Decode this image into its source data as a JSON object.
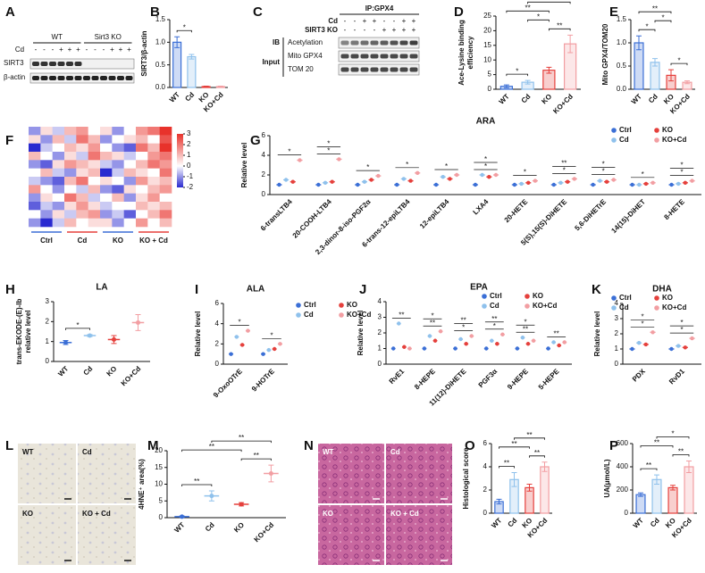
{
  "blot_a": {
    "panel": "A",
    "groups": [
      "WT",
      "Sirt3 KO"
    ],
    "treatment": "Cd",
    "signs": [
      "-",
      "-",
      "-",
      "+",
      "+",
      "+",
      "-",
      "-",
      "-",
      "+",
      "+",
      "+"
    ],
    "rows": [
      "SIRT3",
      "β-actin"
    ]
  },
  "blot_c": {
    "panel": "C",
    "title": "IP:GPX4",
    "conditions": [
      {
        "label": "Cd",
        "signs": [
          "-",
          "-",
          "+",
          "+",
          "-",
          "-",
          "+",
          "+"
        ]
      },
      {
        "label": "SIRT3 KO",
        "signs": [
          "-",
          "-",
          "-",
          "-",
          "+",
          "+",
          "+",
          "+"
        ]
      }
    ],
    "ib_label": "IB",
    "input_label": "Input",
    "ip_rows": [
      "Acetylation"
    ],
    "input_rows": [
      "Mito GPX4",
      "TOM 20"
    ]
  },
  "heatmap": {
    "panel": "F",
    "groups": [
      "Ctrl",
      "Cd",
      "KO",
      "KO + Cd"
    ],
    "colorbar_ticks": [
      3,
      2,
      1,
      0,
      -1,
      -2
    ],
    "matrix": [
      [
        -1,
        0.5,
        -0.5,
        1,
        1.5,
        0,
        0.5,
        -1,
        0,
        1.5,
        2,
        3
      ],
      [
        0.5,
        -1,
        1,
        -0.5,
        2,
        1,
        -1,
        0,
        0.5,
        1,
        0,
        2.5
      ],
      [
        -2,
        -0.5,
        0,
        1,
        0.5,
        1.5,
        0,
        -1,
        -1.5,
        2,
        1,
        3
      ],
      [
        1,
        0,
        -1,
        0.5,
        -0.5,
        2,
        1,
        0.5,
        -0.5,
        0,
        1.5,
        2
      ],
      [
        -1,
        -1.5,
        0.5,
        1.5,
        1,
        0.5,
        -0.5,
        -1,
        0,
        1,
        2,
        1.5
      ],
      [
        0,
        1,
        -0.5,
        -1,
        0.5,
        1,
        -2,
        -0.5,
        1,
        0.5,
        0,
        2
      ],
      [
        -0.5,
        -1,
        -1.5,
        1,
        2,
        0,
        0.5,
        0,
        -1,
        1.5,
        0.5,
        1
      ],
      [
        1.5,
        0,
        -1,
        0,
        -0.5,
        1,
        -1,
        -1.5,
        0.5,
        0,
        1,
        1.5
      ],
      [
        -1,
        0.5,
        0,
        2,
        1,
        -0.5,
        0,
        1,
        -1,
        0.5,
        1.5,
        0
      ],
      [
        -1.5,
        -0.5,
        -1,
        0.5,
        1.5,
        0.5,
        -0.5,
        0,
        0,
        1,
        0.5,
        1
      ],
      [
        0,
        -1,
        0.5,
        -0.5,
        1,
        1.5,
        -1,
        -0.5,
        -1.5,
        0,
        1,
        2
      ],
      [
        -1,
        -2,
        -0.5,
        1,
        0,
        0.5,
        0.5,
        -1,
        0,
        1.5,
        0,
        1
      ]
    ]
  },
  "micrograph_l": {
    "panel": "L",
    "labels": [
      "WT",
      "Cd",
      "KO",
      "KO + Cd"
    ]
  },
  "micrograph_n": {
    "panel": "N",
    "labels": [
      "WT",
      "Cd",
      "KO",
      "KO + Cd"
    ]
  },
  "chart_data": [
    {
      "type": "bar",
      "panel": "B",
      "ylabel": [
        "SIRT3/β-actin"
      ],
      "categories": [
        "WT",
        "Cd",
        "KO",
        "KO+Cd"
      ],
      "values": [
        1.0,
        0.68,
        0.02,
        0.02
      ],
      "errors": [
        0.12,
        0.05,
        0.01,
        0.01
      ],
      "colors": [
        "#3b6fd6",
        "#8fc1ec",
        "#e5403c",
        "#f29ea2"
      ],
      "ylim": [
        0,
        1.5
      ],
      "yticks": [
        {
          "value": 0,
          "label": "0.0"
        },
        {
          "value": 0.5,
          "label": "0.5"
        },
        {
          "value": 1,
          "label": "1.0"
        },
        {
          "value": 1.5,
          "label": "1.5"
        }
      ],
      "significance": [
        {
          "pair": [
            "WT",
            "Cd"
          ],
          "label": "*"
        }
      ]
    },
    {
      "type": "bar",
      "panel": "D",
      "ylabel": [
        "Ace-Lysine binding",
        "efficiency"
      ],
      "categories": [
        "WT",
        "Cd",
        "KO",
        "KO+Cd"
      ],
      "values": [
        1,
        2.4,
        6.5,
        15.5
      ],
      "errors": [
        0.5,
        0.6,
        1,
        3
      ],
      "colors": [
        "#3b6fd6",
        "#8fc1ec",
        "#e5403c",
        "#f29ea2"
      ],
      "ylim": [
        0,
        25
      ],
      "yticks": [
        0,
        5,
        10,
        15,
        20,
        25
      ],
      "significance": [
        {
          "pair": [
            "WT",
            "Cd"
          ],
          "label": "*"
        },
        {
          "pair": [
            "KO",
            "KO+Cd"
          ],
          "label": "**"
        },
        {
          "pair": [
            "Cd",
            "KO"
          ],
          "label": "*"
        },
        {
          "pair": [
            "WT",
            "KO"
          ],
          "label": "**"
        },
        {
          "pair": [
            "Cd",
            "KO+Cd"
          ],
          "label": "**"
        }
      ]
    },
    {
      "type": "bar",
      "panel": "E",
      "ylabel": [
        "Mito GPX4/TOM20"
      ],
      "categories": [
        "WT",
        "Cd",
        "KO",
        "KO+Cd"
      ],
      "values": [
        1.0,
        0.58,
        0.3,
        0.15
      ],
      "errors": [
        0.15,
        0.08,
        0.12,
        0.03
      ],
      "colors": [
        "#3b6fd6",
        "#8fc1ec",
        "#e5403c",
        "#f29ea2"
      ],
      "ylim": [
        0,
        1.5
      ],
      "yticks": [
        {
          "value": 0,
          "label": "0.0"
        },
        {
          "value": 0.5,
          "label": "0.5"
        },
        {
          "value": 1,
          "label": "1.0"
        },
        {
          "value": 1.5,
          "label": "1.5"
        }
      ],
      "significance": [
        {
          "pair": [
            "WT",
            "Cd"
          ],
          "label": "*"
        },
        {
          "pair": [
            "KO",
            "KO+Cd"
          ],
          "label": "*"
        },
        {
          "pair": [
            "Cd",
            "KO"
          ],
          "label": "*"
        },
        {
          "pair": [
            "WT",
            "KO"
          ],
          "label": "**"
        }
      ]
    },
    {
      "type": "grouped_dot",
      "panel": "G",
      "title": "ARA",
      "ylabel": [
        "Relative level"
      ],
      "legend": "top-right",
      "categories": [
        "6-transLTB4",
        "20-COOH-LTB4",
        "2,3-dinor-8-iso-PGF2α",
        "6-trans-12-epiLTB4",
        "12-epiLTB4",
        "LXA4",
        "20-HETE",
        "5(S),15(S)-DiHETE",
        "5,6-DiHETrE",
        "14(15)-DiHET",
        "8-HETE"
      ],
      "series": [
        {
          "name": "Ctrl",
          "color": "#3b6fd6",
          "values": [
            1,
            1,
            1,
            1,
            1,
            1,
            1,
            1,
            1,
            1,
            1
          ]
        },
        {
          "name": "Cd",
          "color": "#8fc1ec",
          "values": [
            1.5,
            1.2,
            1.3,
            1.6,
            1.8,
            2.0,
            1.1,
            1.2,
            1.4,
            1.0,
            1.1
          ]
        },
        {
          "name": "KO",
          "color": "#e5403c",
          "values": [
            1.3,
            1.3,
            1.5,
            1.4,
            1.6,
            1.8,
            1.2,
            1.3,
            1.3,
            1.1,
            1.2
          ]
        },
        {
          "name": "KO+Cd",
          "color": "#f29ea2",
          "values": [
            3.5,
            3.6,
            1.9,
            2.2,
            2.0,
            2.0,
            1.4,
            1.6,
            1.5,
            1.2,
            1.4
          ]
        }
      ],
      "ylim": [
        0,
        6
      ],
      "yticks": [
        0,
        2,
        4,
        6
      ],
      "stars": [
        [
          "*"
        ],
        [
          "*",
          "*"
        ],
        [
          "*"
        ],
        [
          "*"
        ],
        [
          "*"
        ],
        [
          "*",
          "*"
        ],
        [
          "*"
        ],
        [
          "*",
          "**"
        ],
        [
          "*",
          "*"
        ],
        [
          "*"
        ],
        [
          "*",
          "*"
        ]
      ]
    },
    {
      "type": "dot",
      "panel": "H",
      "title": "LA",
      "ylabel": [
        "trans-EKODE-(E)-Ib",
        "relative level"
      ],
      "categories": [
        "WT",
        "Cd",
        "KO",
        "KO+Cd"
      ],
      "values": [
        0.95,
        1.3,
        1.1,
        1.95
      ],
      "errors": [
        0.1,
        0.05,
        0.2,
        0.4
      ],
      "colors": [
        "#3b6fd6",
        "#8fc1ec",
        "#e5403c",
        "#f29ea2"
      ],
      "ylim": [
        0,
        3
      ],
      "yticks": [
        0,
        1,
        2,
        3
      ],
      "significance": [
        {
          "pair": [
            "WT",
            "Cd"
          ],
          "label": "*"
        }
      ]
    },
    {
      "type": "grouped_dot",
      "panel": "I",
      "title": "ALA",
      "ylabel": [
        "Relative level"
      ],
      "legend": "right",
      "categories": [
        "9-OxoOTrE",
        "9-HOTrE"
      ],
      "series": [
        {
          "name": "Ctrl",
          "color": "#3b6fd6",
          "values": [
            1.0,
            1.0
          ]
        },
        {
          "name": "Cd",
          "color": "#8fc1ec",
          "values": [
            2.7,
            1.4
          ]
        },
        {
          "name": "KO",
          "color": "#e5403c",
          "values": [
            1.9,
            1.5
          ]
        },
        {
          "name": "KO+Cd",
          "color": "#f29ea2",
          "values": [
            3.3,
            2.0
          ]
        }
      ],
      "ylim": [
        0,
        6
      ],
      "yticks": [
        0,
        2,
        4,
        6
      ],
      "stars": [
        [
          "*"
        ],
        [
          "*"
        ]
      ]
    },
    {
      "type": "grouped_dot",
      "panel": "J",
      "title": "EPA",
      "ylabel": [
        "Relative level"
      ],
      "legend": "top-right",
      "categories": [
        "RvE1",
        "8-HEPE",
        "11(12)-DiHETE",
        "PGF3α",
        "9-HEPE",
        "5-HEPE"
      ],
      "series": [
        {
          "name": "Ctrl",
          "color": "#3b6fd6",
          "values": [
            1,
            1,
            1,
            1,
            1,
            1
          ]
        },
        {
          "name": "Cd",
          "color": "#8fc1ec",
          "values": [
            2.6,
            1.8,
            1.6,
            1.5,
            1.7,
            1.4
          ]
        },
        {
          "name": "KO",
          "color": "#e5403c",
          "values": [
            1.1,
            1.5,
            1.3,
            1.3,
            1.3,
            1.2
          ]
        },
        {
          "name": "KO+Cd",
          "color": "#f29ea2",
          "values": [
            1.0,
            2.1,
            1.8,
            1.9,
            1.5,
            1.4
          ]
        }
      ],
      "ylim": [
        0,
        4
      ],
      "yticks": [
        0,
        1,
        2,
        3,
        4
      ],
      "stars": [
        [
          "**"
        ],
        [
          "**",
          "*"
        ],
        [
          "*",
          "**"
        ],
        [
          "*",
          "**"
        ],
        [
          "**",
          "*"
        ],
        [
          "**"
        ]
      ]
    },
    {
      "type": "grouped_dot",
      "panel": "K",
      "title": "DHA",
      "ylabel": [
        "Relative level"
      ],
      "legend": "top-right",
      "categories": [
        "PDX",
        "RvD1"
      ],
      "series": [
        {
          "name": "Ctrl",
          "color": "#3b6fd6",
          "values": [
            1.0,
            1.0
          ]
        },
        {
          "name": "Cd",
          "color": "#8fc1ec",
          "values": [
            1.4,
            1.2
          ]
        },
        {
          "name": "KO",
          "color": "#e5403c",
          "values": [
            1.3,
            1.1
          ]
        },
        {
          "name": "KO+Cd",
          "color": "#f29ea2",
          "values": [
            2.1,
            1.7
          ]
        }
      ],
      "ylim": [
        0,
        4
      ],
      "yticks": [
        0,
        1,
        2,
        3,
        4
      ],
      "stars": [
        [
          "*",
          "*"
        ],
        [
          "*",
          "*"
        ]
      ]
    },
    {
      "type": "dot",
      "panel": "M",
      "ylabel": [
        "4HNE⁺ area(%)"
      ],
      "categories": [
        "WT",
        "Cd",
        "KO",
        "KO+Cd"
      ],
      "values": [
        0.3,
        6.5,
        4,
        13.2
      ],
      "errors": [
        0.2,
        1.5,
        0.5,
        2.5
      ],
      "colors": [
        "#3b6fd6",
        "#8fc1ec",
        "#e5403c",
        "#f29ea2"
      ],
      "ylim": [
        0,
        20
      ],
      "yticks": [
        0,
        5,
        10,
        15,
        20
      ],
      "significance": [
        {
          "pair": [
            "WT",
            "Cd"
          ],
          "label": "**"
        },
        {
          "pair": [
            "KO",
            "KO+Cd"
          ],
          "label": "**"
        },
        {
          "pair": [
            "WT",
            "KO"
          ],
          "label": "**"
        },
        {
          "pair": [
            "Cd",
            "KO+Cd"
          ],
          "label": "**"
        }
      ]
    },
    {
      "type": "bar",
      "panel": "O",
      "ylabel": [
        "Histological score"
      ],
      "categories": [
        "WT",
        "Cd",
        "KO",
        "KO+Cd"
      ],
      "values": [
        1,
        2.9,
        2.2,
        4
      ],
      "errors": [
        0.2,
        0.6,
        0.3,
        0.4
      ],
      "colors": [
        "#3b6fd6",
        "#8fc1ec",
        "#e5403c",
        "#f29ea2"
      ],
      "ylim": [
        0,
        6
      ],
      "yticks": [
        0,
        2,
        4,
        6
      ],
      "significance": [
        {
          "pair": [
            "WT",
            "Cd"
          ],
          "label": "**"
        },
        {
          "pair": [
            "KO",
            "KO+Cd"
          ],
          "label": "**"
        },
        {
          "pair": [
            "WT",
            "KO"
          ],
          "label": "**"
        },
        {
          "pair": [
            "Cd",
            "KO+Cd"
          ],
          "label": "**"
        }
      ]
    },
    {
      "type": "bar",
      "panel": "P",
      "ylabel": [
        "UA(μmol/L)"
      ],
      "categories": [
        "WT",
        "Cd",
        "KO",
        "KO+Cd"
      ],
      "values": [
        160,
        290,
        220,
        400
      ],
      "errors": [
        15,
        40,
        20,
        50
      ],
      "colors": [
        "#3b6fd6",
        "#8fc1ec",
        "#e5403c",
        "#f29ea2"
      ],
      "ylim": [
        0,
        600
      ],
      "yticks": [
        0,
        200,
        400,
        600
      ],
      "significance": [
        {
          "pair": [
            "WT",
            "Cd"
          ],
          "label": "**"
        },
        {
          "pair": [
            "KO",
            "KO+Cd"
          ],
          "label": "**"
        },
        {
          "pair": [
            "WT",
            "KO"
          ],
          "label": "**"
        },
        {
          "pair": [
            "Cd",
            "KO+Cd"
          ],
          "label": "*"
        }
      ]
    }
  ]
}
